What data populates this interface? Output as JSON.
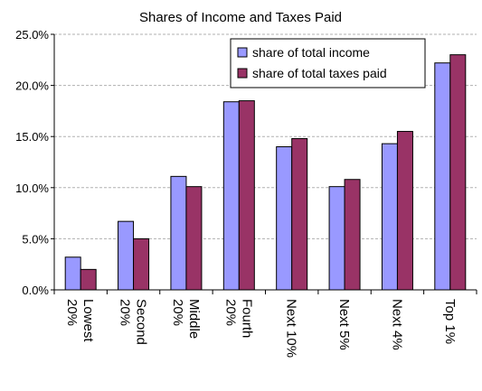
{
  "chart_data": {
    "type": "bar",
    "title": "Shares of Income and Taxes Paid",
    "xlabel": "",
    "ylabel": "",
    "categories": [
      "Lowest 20%",
      "Second 20%",
      "Middle 20%",
      "Fourth 20%",
      "Next 10%",
      "Next 5%",
      "Next 4%",
      "Top 1%"
    ],
    "series": [
      {
        "name": "share of total income",
        "color": "#9999ff",
        "values": [
          3.2,
          6.7,
          11.1,
          18.4,
          14.0,
          10.1,
          14.3,
          22.2
        ]
      },
      {
        "name": "share of total taxes paid",
        "color": "#993366",
        "values": [
          2.0,
          5.0,
          10.1,
          18.5,
          14.8,
          10.8,
          15.5,
          23.0
        ]
      }
    ],
    "ylim": [
      0,
      25
    ],
    "yticks": [
      0,
      5,
      10,
      15,
      20,
      25
    ],
    "ytick_labels": [
      "0.0%",
      "5.0%",
      "10.0%",
      "15.0%",
      "20.0%",
      "25.0%"
    ],
    "grid": true,
    "legend_position": "top-right"
  }
}
